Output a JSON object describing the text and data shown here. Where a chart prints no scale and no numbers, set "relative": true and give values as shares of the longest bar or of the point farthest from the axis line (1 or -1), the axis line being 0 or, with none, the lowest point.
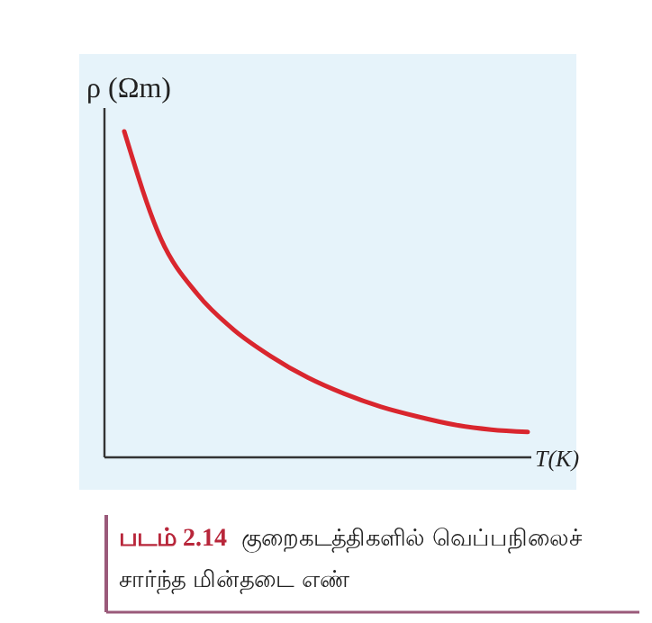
{
  "chart_data": {
    "type": "line",
    "relative": true,
    "xlabel": "T(K)",
    "ylabel": "ρ (Ωm)",
    "categories": [
      null,
      null,
      null,
      null,
      null,
      null,
      null,
      null,
      null,
      null,
      null,
      null
    ],
    "series": [
      {
        "color": "#d9262e",
        "values": [
          1,
          0.67,
          0.5,
          0.39,
          0.31,
          0.245,
          0.195,
          0.155,
          0.125,
          0.1,
          0.085,
          0.078
        ]
      }
    ],
    "annotations": [
      "படம் 2.14",
      "குறைகடத்திகளில் வெப்பநிலைச் சார்ந்த மின்தடை எண்"
    ]
  }
}
